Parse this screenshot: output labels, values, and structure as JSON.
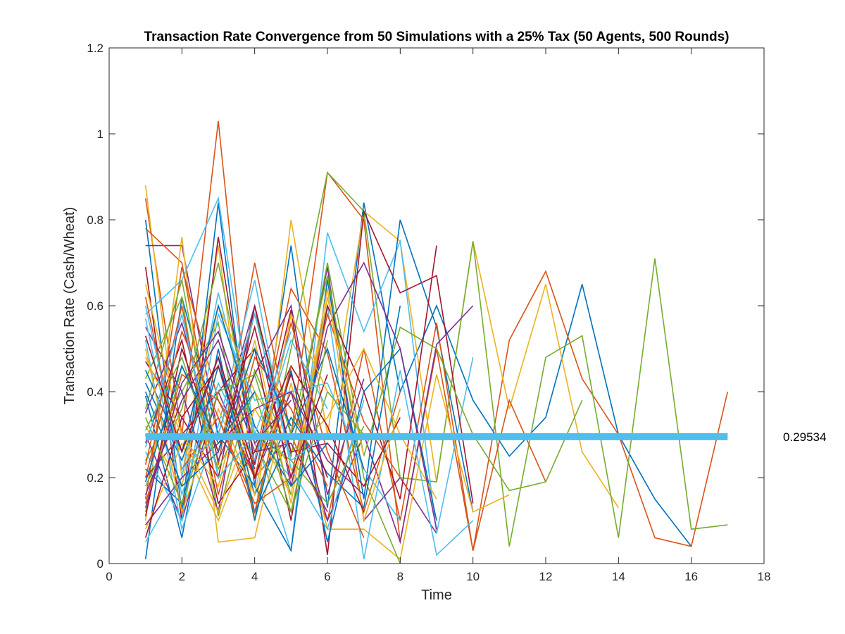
{
  "chart_data": {
    "type": "line",
    "title": "Transaction Rate Convergence from 50 Simulations with a 25% Tax (50 Agents, 500 Rounds)",
    "xlabel": "Time",
    "ylabel": "Transaction Rate (Cash/Wheat)",
    "xlim": [
      0,
      18
    ],
    "ylim": [
      0,
      1.2
    ],
    "xticks": [
      "0",
      "2",
      "4",
      "6",
      "8",
      "10",
      "12",
      "14",
      "16",
      "18"
    ],
    "yticks": [
      "0",
      "0.2",
      "0.4",
      "0.6",
      "0.8",
      "1",
      "1.2"
    ],
    "grid": false,
    "legend": "none",
    "mean_line": {
      "y": 0.29534,
      "x_start": 1,
      "x_end": 17,
      "label": "0.29534",
      "color": "#4DBEEE"
    },
    "colors": [
      "#0072BD",
      "#D95319",
      "#EDB120",
      "#7E2F8E",
      "#77AC30",
      "#4DBEEE",
      "#A2142F"
    ],
    "series": [
      {
        "values": [
          0.8,
          0.12,
          0.84,
          0.18,
          0.74,
          0.13,
          0.84,
          0.4,
          0.6,
          0.38,
          0.25,
          0.34,
          0.65,
          0.3,
          0.15,
          0.04
        ]
      },
      {
        "values": [
          0.85,
          0.3,
          1.03,
          0.2,
          0.3,
          0.91,
          0.8,
          0.05,
          0.5,
          0.03,
          0.52,
          0.68,
          0.43,
          0.3,
          0.06,
          0.04,
          0.4
        ]
      },
      {
        "values": [
          0.88,
          0.2,
          0.74,
          0.1,
          0.8,
          0.3,
          0.82,
          0.75,
          0.19,
          0.75,
          0.36,
          0.65,
          0.26,
          0.13
        ]
      },
      {
        "values": [
          0.74,
          0.74,
          0.3,
          0.6,
          0.25,
          0.69,
          0.1,
          0.2,
          0.07
        ]
      },
      {
        "values": [
          0.24,
          0.4,
          0.56,
          0.1,
          0.5,
          0.91,
          0.82,
          0.2,
          0.19,
          0.75,
          0.04,
          0.48,
          0.53,
          0.06,
          0.71,
          0.08,
          0.09
        ]
      },
      {
        "values": [
          0.58,
          0.66,
          0.85,
          0.3,
          0.03,
          0.77,
          0.54,
          0.75,
          0.07,
          0.48
        ]
      },
      {
        "values": [
          0.69,
          0.1,
          0.76,
          0.23,
          0.59,
          0.02,
          0.82,
          0.63,
          0.67,
          0.14
        ]
      },
      {
        "values": [
          0.01,
          0.62,
          0.3,
          0.18,
          0.03,
          0.66,
          0.15,
          0.8,
          0.55,
          0.12
        ]
      },
      {
        "values": [
          0.78,
          0.7,
          0.23,
          0.7,
          0.3,
          0.1,
          0.5,
          0.1,
          0.56,
          0.03,
          0.38,
          0.19
        ]
      },
      {
        "values": [
          0.1,
          0.76,
          0.05,
          0.06,
          0.42,
          0.08,
          0.08,
          0.01,
          0.44,
          0.12,
          0.16
        ]
      },
      {
        "values": [
          0.3,
          0.1,
          0.4,
          0.2,
          0.4,
          0.1,
          0.3,
          0.05,
          0.51,
          0.6
        ]
      },
      {
        "values": [
          0.43,
          0.62,
          0.11,
          0.45,
          0.25,
          0.7,
          0.25,
          0.55,
          0.5,
          0.3,
          0.17,
          0.19,
          0.38
        ]
      },
      {
        "values": [
          0.05,
          0.2,
          0.63,
          0.3,
          0.2,
          0.6,
          0.01,
          0.45,
          0.02,
          0.1
        ]
      },
      {
        "values": [
          0.2,
          0.3,
          0.4,
          0.5,
          0.1,
          0.6,
          0.4,
          0.15,
          0.74
        ]
      },
      {
        "values": [
          0.39,
          0.06,
          0.5,
          0.1,
          0.45,
          0.05,
          0.4,
          0.5,
          0.1
        ]
      },
      {
        "values": [
          0.15,
          0.69,
          0.38,
          0.24,
          0.64,
          0.49,
          0.12,
          0.4
        ]
      },
      {
        "values": [
          0.32,
          0.18,
          0.6,
          0.4,
          0.26,
          0.34,
          0.5,
          0.3,
          0.15
        ]
      },
      {
        "values": [
          0.55,
          0.4,
          0.12,
          0.6,
          0.18,
          0.55,
          0.7,
          0.5,
          0.08
        ]
      },
      {
        "values": [
          0.12,
          0.46,
          0.26,
          0.58,
          0.3,
          0.67,
          0.2,
          0.0
        ]
      },
      {
        "values": [
          0.26,
          0.1,
          0.58,
          0.38,
          0.4,
          0.42,
          0.22,
          0.1
        ]
      },
      {
        "values": [
          0.47,
          0.34,
          0.2,
          0.6,
          0.26,
          0.28,
          0.18,
          0.34
        ]
      },
      {
        "values": [
          0.22,
          0.14,
          0.46,
          0.16,
          0.34,
          0.21,
          0.13,
          0.6
        ]
      },
      {
        "values": [
          0.62,
          0.22,
          0.34,
          0.14,
          0.2,
          0.58,
          0.33,
          0.2
        ]
      },
      {
        "values": [
          0.08,
          0.28,
          0.1,
          0.32,
          0.16,
          0.64,
          0.1,
          0.36
        ]
      },
      {
        "values": [
          0.35,
          0.56,
          0.24,
          0.44,
          0.6,
          0.16,
          0.43
        ]
      },
      {
        "values": [
          0.18,
          0.36,
          0.7,
          0.28,
          0.12,
          0.4,
          0.3
        ]
      },
      {
        "values": [
          0.52,
          0.08,
          0.32,
          0.66,
          0.22,
          0.08,
          0.38
        ]
      },
      {
        "values": [
          0.28,
          0.52,
          0.14,
          0.26,
          0.46,
          0.32,
          0.12
        ]
      },
      {
        "values": [
          0.42,
          0.24,
          0.48,
          0.12,
          0.3,
          0.5,
          0.22
        ]
      },
      {
        "values": [
          0.14,
          0.44,
          0.38,
          0.2,
          0.56,
          0.26,
          0.06
        ]
      },
      {
        "values": [
          0.65,
          0.3,
          0.18,
          0.52,
          0.14,
          0.62,
          0.25
        ]
      },
      {
        "values": [
          0.09,
          0.2,
          0.28,
          0.36,
          0.4,
          0.24,
          0.16
        ]
      },
      {
        "values": [
          0.36,
          0.66,
          0.2,
          0.3,
          0.24,
          0.14,
          0.32
        ]
      },
      {
        "values": [
          0.57,
          0.16,
          0.42,
          0.24,
          0.52,
          0.36
        ]
      },
      {
        "values": [
          0.11,
          0.5,
          0.26,
          0.55,
          0.2,
          0.44
        ]
      },
      {
        "values": [
          0.45,
          0.26,
          0.6,
          0.32,
          0.18,
          0.28
        ]
      },
      {
        "values": [
          0.23,
          0.6,
          0.16,
          0.48,
          0.36,
          0.18
        ]
      },
      {
        "values": [
          0.5,
          0.12,
          0.36,
          0.16,
          0.58,
          0.4
        ]
      },
      {
        "values": [
          0.16,
          0.38,
          0.52,
          0.26,
          0.28,
          0.12
        ]
      },
      {
        "values": [
          0.31,
          0.48,
          0.22,
          0.4,
          0.12,
          0.52
        ]
      },
      {
        "values": [
          0.6,
          0.22,
          0.3,
          0.58,
          0.24,
          0.3
        ]
      },
      {
        "values": [
          0.06,
          0.34,
          0.46,
          0.2,
          0.44,
          0.2
        ]
      },
      {
        "values": [
          0.4,
          0.18,
          0.26,
          0.5,
          0.32
        ]
      },
      {
        "values": [
          0.2,
          0.54,
          0.34,
          0.12,
          0.46
        ]
      },
      {
        "values": [
          0.48,
          0.3,
          0.12,
          0.36,
          0.22
        ]
      },
      {
        "values": [
          0.13,
          0.42,
          0.54,
          0.28,
          0.38
        ]
      },
      {
        "values": [
          0.34,
          0.14,
          0.4,
          0.44,
          0.16
        ]
      },
      {
        "values": [
          0.27,
          0.58,
          0.2,
          0.3,
          0.54
        ]
      },
      {
        "values": [
          0.53,
          0.26,
          0.48,
          0.22
        ]
      },
      {
        "values": [
          0.19,
          0.46,
          0.28,
          0.4
        ]
      }
    ]
  }
}
